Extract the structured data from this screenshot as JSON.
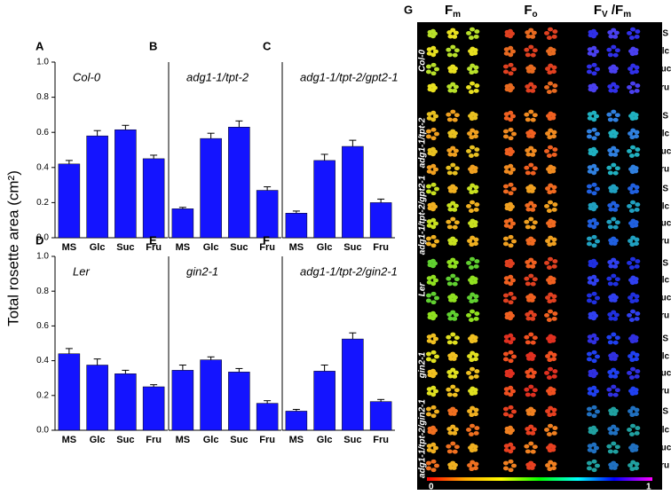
{
  "y_label": "Total rosette area (cm²)",
  "chart_data": [
    {
      "type": "bar",
      "panel": "A",
      "title": "Col-0",
      "categories": [
        "MS",
        "Glc",
        "Suc",
        "Fru"
      ],
      "values": [
        0.42,
        0.58,
        0.615,
        0.45
      ],
      "errors": [
        0.02,
        0.03,
        0.025,
        0.02
      ],
      "color": "#1414ff",
      "ylim": [
        0,
        1
      ],
      "yticks": [
        {
          "value": 0,
          "label": "0.0"
        },
        0.2,
        0.4,
        0.6,
        0.8,
        {
          "value": 1,
          "label": "1.0"
        }
      ]
    },
    {
      "type": "bar",
      "panel": "B",
      "title": "adg1-1/tpt-2",
      "categories": [
        "MS",
        "Glc",
        "Suc",
        "Fru"
      ],
      "values": [
        0.165,
        0.565,
        0.63,
        0.27
      ],
      "errors": [
        0.008,
        0.03,
        0.035,
        0.02
      ],
      "color": "#1414ff",
      "ylim": [
        0,
        1
      ]
    },
    {
      "type": "bar",
      "panel": "C",
      "title": "adg1-1/tpt-2/gpt2-1",
      "categories": [
        "MS",
        "Glc",
        "Suc",
        "Fru"
      ],
      "values": [
        0.14,
        0.44,
        0.52,
        0.2
      ],
      "errors": [
        0.012,
        0.035,
        0.035,
        0.02
      ],
      "color": "#1414ff",
      "ylim": [
        0,
        1
      ]
    },
    {
      "type": "bar",
      "panel": "D",
      "title": "Ler",
      "categories": [
        "MS",
        "Glc",
        "Suc",
        "Fru"
      ],
      "values": [
        0.44,
        0.375,
        0.325,
        0.25
      ],
      "errors": [
        0.03,
        0.035,
        0.02,
        0.012
      ],
      "color": "#1414ff",
      "ylim": [
        0,
        1
      ],
      "yticks": [
        {
          "value": 0,
          "label": "0.0"
        },
        0.2,
        0.4,
        0.6,
        0.8,
        {
          "value": 1,
          "label": "1.0"
        }
      ]
    },
    {
      "type": "bar",
      "panel": "E",
      "title": "gin2-1",
      "categories": [
        "MS",
        "Glc",
        "Suc",
        "Fru"
      ],
      "values": [
        0.345,
        0.405,
        0.335,
        0.155
      ],
      "errors": [
        0.03,
        0.017,
        0.02,
        0.015
      ],
      "color": "#1414ff",
      "ylim": [
        0,
        1
      ]
    },
    {
      "type": "bar",
      "panel": "F",
      "title": "adg1-1/tpt-2/gin2-1",
      "categories": [
        "MS",
        "Glc",
        "Suc",
        "Fru"
      ],
      "values": [
        0.11,
        0.34,
        0.525,
        0.165
      ],
      "errors": [
        0.01,
        0.035,
        0.035,
        0.012
      ],
      "color": "#1414ff",
      "ylim": [
        0,
        1
      ]
    }
  ],
  "panel_g": {
    "panel": "G",
    "headers": [
      [
        "F",
        "m"
      ],
      [
        "F",
        "o"
      ],
      [
        "F",
        "V",
        " /F",
        "m"
      ]
    ],
    "groups": [
      {
        "name": "Col-0",
        "rows": [
          "MS",
          "Glc",
          "Suc",
          "Fru"
        ]
      },
      {
        "name": "adg1-1/tpt-2",
        "rows": [
          "MS",
          "Glc",
          "Suc",
          "Fru"
        ]
      },
      {
        "name": "adg1-1/tpt-2/gpt2-1",
        "rows": [
          "MS",
          "Glc",
          "Suc",
          "Fru"
        ]
      },
      {
        "name": "Ler",
        "rows": [
          "MS",
          "Glc",
          "Suc",
          "Fru"
        ]
      },
      {
        "name": "gin2-1",
        "rows": [
          "MS",
          "Glc",
          "Suc",
          "Fru"
        ]
      },
      {
        "name": "adg1-1/tpt-2/gin2-1",
        "rows": [
          "MS",
          "Glc",
          "Suc",
          "Fru"
        ]
      }
    ],
    "scale_labels": [
      "0",
      "1"
    ]
  }
}
